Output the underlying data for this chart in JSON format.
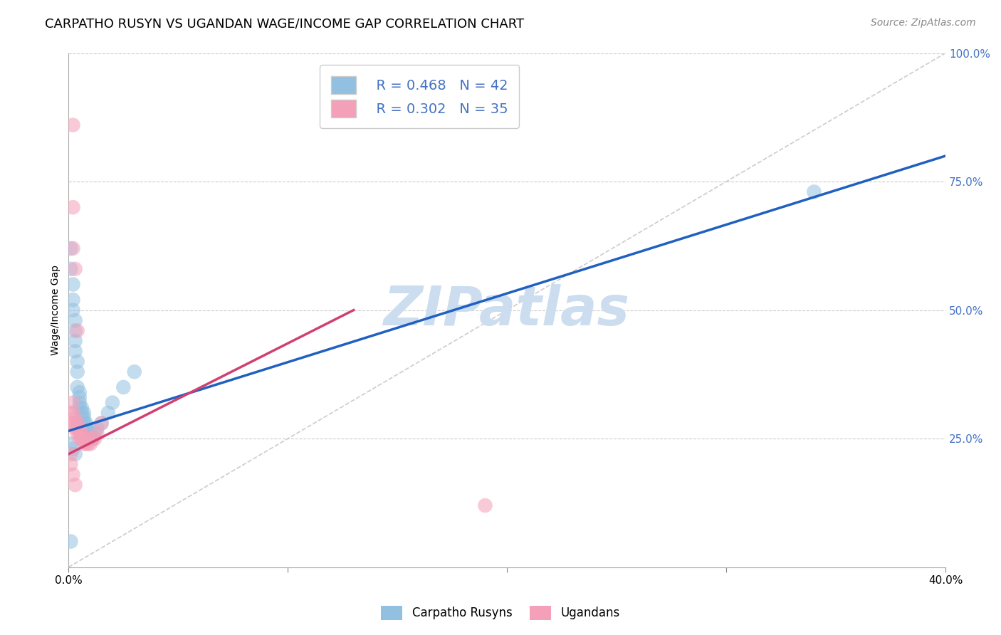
{
  "title": "CARPATHO RUSYN VS UGANDAN WAGE/INCOME GAP CORRELATION CHART",
  "source": "Source: ZipAtlas.com",
  "ylabel": "Wage/Income Gap",
  "legend_labels": [
    "Carpatho Rusyns",
    "Ugandans"
  ],
  "legend_r": [
    "R = 0.468",
    "R = 0.302"
  ],
  "legend_n": [
    "N = 42",
    "N = 35"
  ],
  "blue_color": "#92c0e0",
  "pink_color": "#f4a0b8",
  "trend_blue": "#2060c0",
  "trend_pink": "#d04070",
  "axis_color": "#4472c4",
  "watermark_color": "#ccddf0",
  "background_color": "#ffffff",
  "grid_color": "#cccccc",
  "blue_points_x": [
    0.001,
    0.001,
    0.002,
    0.002,
    0.002,
    0.003,
    0.003,
    0.003,
    0.003,
    0.004,
    0.004,
    0.004,
    0.005,
    0.005,
    0.005,
    0.005,
    0.006,
    0.006,
    0.006,
    0.007,
    0.007,
    0.007,
    0.008,
    0.008,
    0.008,
    0.009,
    0.009,
    0.01,
    0.01,
    0.011,
    0.012,
    0.013,
    0.015,
    0.018,
    0.02,
    0.025,
    0.03,
    0.001,
    0.002,
    0.003,
    0.34,
    0.001
  ],
  "blue_points_y": [
    0.62,
    0.58,
    0.55,
    0.52,
    0.5,
    0.48,
    0.46,
    0.44,
    0.42,
    0.4,
    0.38,
    0.35,
    0.34,
    0.33,
    0.32,
    0.31,
    0.31,
    0.3,
    0.29,
    0.3,
    0.29,
    0.28,
    0.28,
    0.27,
    0.26,
    0.27,
    0.26,
    0.26,
    0.25,
    0.25,
    0.26,
    0.27,
    0.28,
    0.3,
    0.32,
    0.35,
    0.38,
    0.24,
    0.23,
    0.22,
    0.73,
    0.05
  ],
  "pink_points_x": [
    0.001,
    0.001,
    0.002,
    0.002,
    0.003,
    0.003,
    0.003,
    0.004,
    0.004,
    0.004,
    0.005,
    0.005,
    0.005,
    0.006,
    0.006,
    0.007,
    0.007,
    0.008,
    0.008,
    0.009,
    0.01,
    0.011,
    0.012,
    0.013,
    0.015,
    0.002,
    0.003,
    0.004,
    0.001,
    0.001,
    0.002,
    0.003,
    0.19,
    0.002,
    0.002
  ],
  "pink_points_y": [
    0.3,
    0.28,
    0.32,
    0.3,
    0.29,
    0.28,
    0.27,
    0.28,
    0.27,
    0.26,
    0.27,
    0.26,
    0.25,
    0.26,
    0.25,
    0.25,
    0.24,
    0.25,
    0.24,
    0.24,
    0.24,
    0.25,
    0.25,
    0.26,
    0.28,
    0.62,
    0.58,
    0.46,
    0.22,
    0.2,
    0.18,
    0.16,
    0.12,
    0.86,
    0.7
  ],
  "blue_line_x": [
    0.0,
    0.4
  ],
  "blue_line_y": [
    0.265,
    0.8
  ],
  "pink_line_x": [
    0.0,
    0.13
  ],
  "pink_line_y": [
    0.22,
    0.5
  ],
  "diag_line_x": [
    0.0,
    0.4
  ],
  "diag_line_y": [
    0.0,
    1.0
  ],
  "xlim": [
    0.0,
    0.4
  ],
  "ylim": [
    0.0,
    1.0
  ],
  "x_ticks": [
    0.0,
    0.1,
    0.2,
    0.3,
    0.4
  ],
  "y_ticks": [
    0.0,
    0.25,
    0.5,
    0.75,
    1.0
  ],
  "y_tick_labels": [
    "",
    "25.0%",
    "50.0%",
    "75.0%",
    "100.0%"
  ],
  "title_fontsize": 13,
  "source_fontsize": 10,
  "axis_label_fontsize": 10,
  "tick_fontsize": 11,
  "legend_fontsize": 14,
  "watermark_fontsize": 55
}
